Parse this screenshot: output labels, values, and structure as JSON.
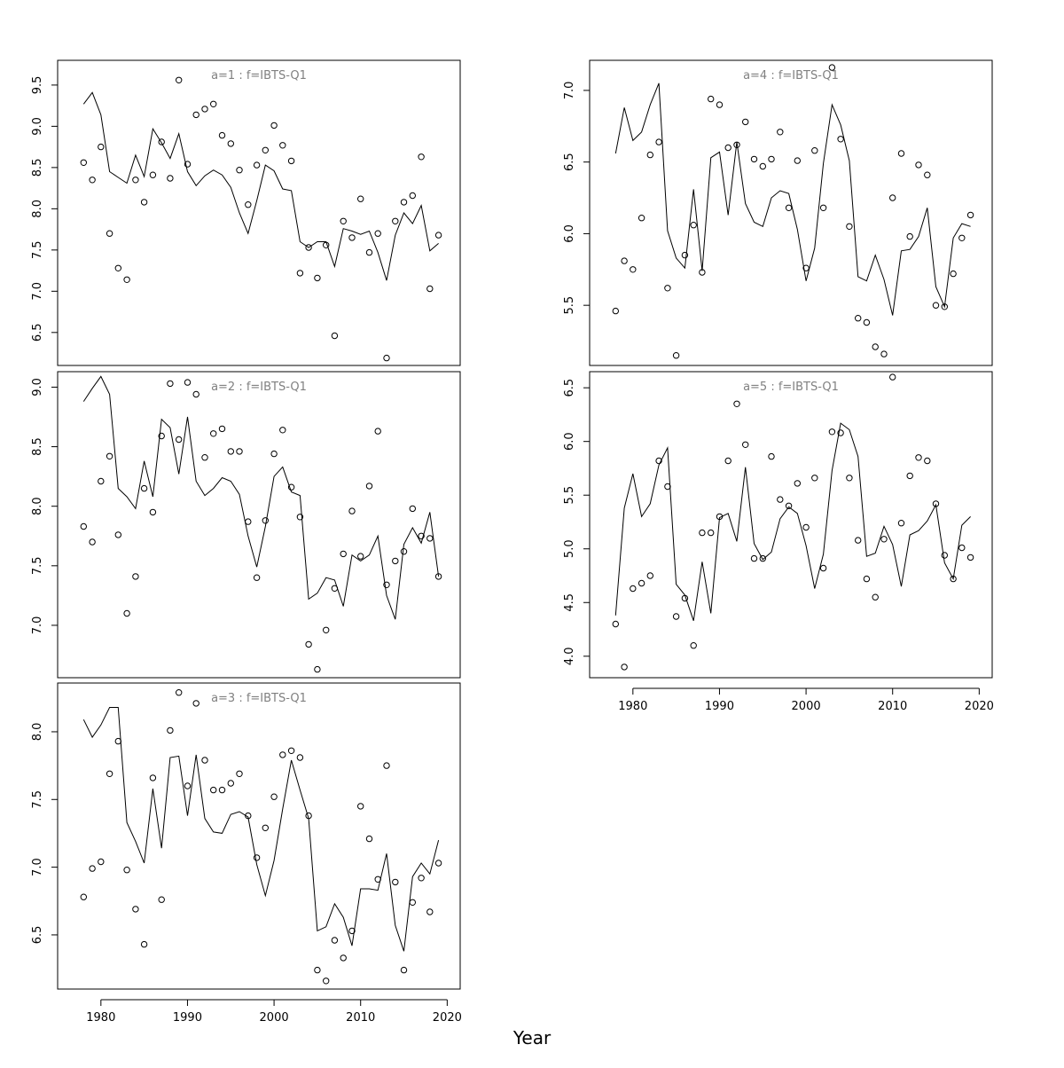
{
  "figure": {
    "xlabel": "Year"
  },
  "chart_data": [
    {
      "type": "line",
      "title": "a=1  :  f=IBTS-Q1",
      "x_ticks": [
        1980,
        1990,
        2000,
        2010,
        2020
      ],
      "show_x_axis": false,
      "xlim": [
        1975,
        2021.5
      ],
      "ylim": [
        6.1,
        9.8
      ],
      "y_ticks": [
        6.5,
        7.0,
        7.5,
        8.0,
        8.5,
        9.0,
        9.5
      ],
      "x": [
        1978,
        1979,
        1980,
        1981,
        1982,
        1983,
        1984,
        1985,
        1986,
        1987,
        1988,
        1989,
        1990,
        1991,
        1992,
        1993,
        1994,
        1995,
        1996,
        1997,
        1998,
        1999,
        2000,
        2001,
        2002,
        2003,
        2004,
        2005,
        2006,
        2007,
        2008,
        2009,
        2010,
        2011,
        2012,
        2013,
        2014,
        2015,
        2016,
        2017,
        2018,
        2019
      ],
      "series": [
        {
          "kind": "line",
          "values": [
            9.27,
            9.41,
            9.14,
            8.45,
            8.38,
            8.31,
            8.65,
            8.39,
            8.97,
            8.8,
            8.61,
            8.91,
            8.45,
            8.28,
            8.4,
            8.47,
            8.41,
            8.26,
            7.95,
            7.7,
            8.1,
            8.53,
            8.46,
            8.24,
            8.22,
            7.6,
            7.53,
            7.6,
            7.6,
            7.3,
            7.76,
            7.73,
            7.69,
            7.73,
            7.47,
            7.13,
            7.68,
            7.95,
            7.82,
            8.04,
            7.49,
            7.58
          ]
        },
        {
          "kind": "points",
          "values": [
            8.56,
            8.35,
            8.75,
            7.7,
            7.28,
            7.14,
            8.35,
            8.08,
            8.41,
            8.81,
            8.37,
            9.56,
            8.54,
            9.14,
            9.21,
            9.27,
            8.89,
            8.79,
            8.47,
            8.05,
            8.53,
            8.71,
            9.01,
            8.77,
            8.58,
            7.22,
            7.53,
            7.16,
            7.56,
            6.46,
            7.85,
            7.65,
            8.12,
            7.47,
            7.7,
            6.19,
            7.85,
            8.08,
            8.16,
            8.63,
            7.03,
            7.68
          ]
        }
      ]
    },
    {
      "type": "line",
      "title": "a=2  :  f=IBTS-Q1",
      "x_ticks": [
        1980,
        1990,
        2000,
        2010,
        2020
      ],
      "show_x_axis": false,
      "xlim": [
        1975,
        2021.5
      ],
      "ylim": [
        6.56,
        9.13
      ],
      "y_ticks": [
        7.0,
        7.5,
        8.0,
        8.5,
        9.0
      ],
      "x": [
        1978,
        1979,
        1980,
        1981,
        1982,
        1983,
        1984,
        1985,
        1986,
        1987,
        1988,
        1989,
        1990,
        1991,
        1992,
        1993,
        1994,
        1995,
        1996,
        1997,
        1998,
        1999,
        2000,
        2001,
        2002,
        2003,
        2004,
        2005,
        2006,
        2007,
        2008,
        2009,
        2010,
        2011,
        2012,
        2013,
        2014,
        2015,
        2016,
        2017,
        2018,
        2019
      ],
      "series": [
        {
          "kind": "line",
          "values": [
            8.88,
            8.99,
            9.09,
            8.94,
            8.15,
            8.08,
            7.98,
            8.38,
            8.08,
            8.73,
            8.66,
            8.27,
            8.75,
            8.21,
            8.09,
            8.15,
            8.24,
            8.21,
            8.1,
            7.75,
            7.49,
            7.83,
            8.25,
            8.33,
            8.12,
            8.09,
            7.22,
            7.27,
            7.4,
            7.38,
            7.16,
            7.59,
            7.54,
            7.59,
            7.75,
            7.25,
            7.05,
            7.68,
            7.82,
            7.69,
            7.95,
            7.41
          ]
        },
        {
          "kind": "points",
          "values": [
            7.83,
            7.7,
            8.21,
            8.42,
            7.76,
            7.1,
            7.41,
            8.15,
            7.95,
            8.59,
            9.03,
            8.56,
            9.04,
            8.94,
            8.41,
            8.61,
            8.65,
            8.46,
            8.46,
            7.87,
            7.4,
            7.88,
            8.44,
            8.64,
            8.16,
            7.91,
            6.84,
            6.63,
            6.96,
            7.31,
            7.6,
            7.96,
            7.58,
            8.17,
            8.63,
            7.34,
            7.54,
            7.62,
            7.98,
            7.75,
            7.73,
            7.41
          ]
        }
      ]
    },
    {
      "type": "line",
      "title": "a=3  :  f=IBTS-Q1",
      "x_ticks": [
        1980,
        1990,
        2000,
        2010,
        2020
      ],
      "show_x_axis": true,
      "xlim": [
        1975,
        2021.5
      ],
      "ylim": [
        6.1,
        8.36
      ],
      "y_ticks": [
        6.5,
        7.0,
        7.5,
        8.0
      ],
      "x": [
        1978,
        1979,
        1980,
        1981,
        1982,
        1983,
        1984,
        1985,
        1986,
        1987,
        1988,
        1989,
        1990,
        1991,
        1992,
        1993,
        1994,
        1995,
        1996,
        1997,
        1998,
        1999,
        2000,
        2001,
        2002,
        2003,
        2004,
        2005,
        2006,
        2007,
        2008,
        2009,
        2010,
        2011,
        2012,
        2013,
        2014,
        2015,
        2016,
        2017,
        2018,
        2019
      ],
      "series": [
        {
          "kind": "line",
          "values": [
            8.09,
            7.96,
            8.05,
            8.18,
            8.18,
            7.33,
            7.19,
            7.03,
            7.58,
            7.14,
            7.81,
            7.82,
            7.38,
            7.83,
            7.36,
            7.26,
            7.25,
            7.39,
            7.41,
            7.37,
            7.02,
            6.79,
            7.05,
            7.43,
            7.79,
            7.57,
            7.36,
            6.53,
            6.56,
            6.73,
            6.63,
            6.42,
            6.84,
            6.84,
            6.83,
            7.1,
            6.57,
            6.38,
            6.93,
            7.03,
            6.95,
            7.2
          ]
        },
        {
          "kind": "points",
          "values": [
            6.78,
            6.99,
            7.04,
            7.69,
            7.93,
            6.98,
            6.69,
            6.43,
            7.66,
            6.76,
            8.01,
            8.29,
            7.6,
            8.21,
            7.79,
            7.57,
            7.57,
            7.62,
            7.69,
            7.38,
            7.07,
            7.29,
            7.52,
            7.83,
            7.86,
            7.81,
            7.38,
            6.24,
            6.16,
            6.46,
            6.33,
            6.53,
            7.45,
            7.21,
            6.91,
            7.75,
            6.89,
            6.24,
            6.74,
            6.92,
            6.67,
            7.03
          ]
        }
      ]
    },
    {
      "type": "line",
      "title": "a=4  :  f=IBTS-Q1",
      "x_ticks": [
        1980,
        1990,
        2000,
        2010,
        2020
      ],
      "show_x_axis": false,
      "xlim": [
        1975,
        2021.5
      ],
      "ylim": [
        5.08,
        7.21
      ],
      "y_ticks": [
        5.5,
        6.0,
        6.5,
        7.0
      ],
      "x": [
        1978,
        1979,
        1980,
        1981,
        1982,
        1983,
        1984,
        1985,
        1986,
        1987,
        1988,
        1989,
        1990,
        1991,
        1992,
        1993,
        1994,
        1995,
        1996,
        1997,
        1998,
        1999,
        2000,
        2001,
        2002,
        2003,
        2004,
        2005,
        2006,
        2007,
        2008,
        2009,
        2010,
        2011,
        2012,
        2013,
        2014,
        2015,
        2016,
        2017,
        2018,
        2019
      ],
      "series": [
        {
          "kind": "line",
          "values": [
            6.56,
            6.88,
            6.65,
            6.71,
            6.9,
            7.05,
            6.02,
            5.83,
            5.76,
            6.31,
            5.74,
            6.53,
            6.57,
            6.13,
            6.64,
            6.21,
            6.08,
            6.05,
            6.25,
            6.3,
            6.28,
            6.03,
            5.67,
            5.9,
            6.49,
            6.9,
            6.76,
            6.51,
            5.7,
            5.67,
            5.85,
            5.68,
            5.43,
            5.88,
            5.89,
            5.98,
            6.18,
            5.63,
            5.49,
            5.97,
            6.07,
            6.05
          ]
        },
        {
          "kind": "points",
          "values": [
            5.46,
            5.81,
            5.75,
            6.11,
            6.55,
            6.64,
            5.62,
            5.15,
            5.85,
            6.06,
            5.73,
            6.94,
            6.9,
            6.6,
            6.62,
            6.78,
            6.52,
            6.47,
            6.52,
            6.71,
            6.18,
            6.51,
            5.76,
            6.58,
            6.18,
            7.16,
            6.66,
            6.05,
            5.41,
            5.38,
            5.21,
            5.16,
            6.25,
            6.56,
            5.98,
            6.48,
            6.41,
            5.5,
            5.49,
            5.72,
            5.97,
            6.13
          ]
        }
      ]
    },
    {
      "type": "line",
      "title": "a=5  :  f=IBTS-Q1",
      "x_ticks": [
        1980,
        1990,
        2000,
        2010,
        2020
      ],
      "show_x_axis": true,
      "xlim": [
        1975,
        2021.5
      ],
      "ylim": [
        3.8,
        6.65
      ],
      "y_ticks": [
        4.0,
        4.5,
        5.0,
        5.5,
        6.0,
        6.5
      ],
      "x": [
        1978,
        1979,
        1980,
        1981,
        1982,
        1983,
        1984,
        1985,
        1986,
        1987,
        1988,
        1989,
        1990,
        1991,
        1992,
        1993,
        1994,
        1995,
        1996,
        1997,
        1998,
        1999,
        2000,
        2001,
        2002,
        2003,
        2004,
        2005,
        2006,
        2007,
        2008,
        2009,
        2010,
        2011,
        2012,
        2013,
        2014,
        2015,
        2016,
        2017,
        2018,
        2019
      ],
      "series": [
        {
          "kind": "line",
          "values": [
            4.38,
            5.38,
            5.7,
            5.3,
            5.42,
            5.78,
            5.94,
            4.67,
            4.57,
            4.33,
            4.88,
            4.4,
            5.29,
            5.33,
            5.07,
            5.76,
            5.05,
            4.9,
            4.97,
            5.28,
            5.39,
            5.33,
            5.03,
            4.63,
            4.95,
            5.73,
            6.17,
            6.11,
            5.86,
            4.93,
            4.96,
            5.21,
            5.04,
            4.65,
            5.13,
            5.17,
            5.26,
            5.41,
            4.87,
            4.72,
            5.22,
            5.3
          ]
        },
        {
          "kind": "points",
          "values": [
            4.3,
            3.9,
            4.63,
            4.68,
            4.75,
            5.82,
            5.58,
            4.37,
            4.54,
            4.1,
            5.15,
            5.15,
            5.3,
            5.82,
            6.35,
            5.97,
            4.91,
            4.91,
            5.86,
            5.46,
            5.4,
            5.61,
            5.2,
            5.66,
            4.82,
            6.09,
            6.08,
            5.66,
            5.08,
            4.72,
            4.55,
            5.09,
            6.6,
            5.24,
            5.68,
            5.85,
            5.82,
            5.42,
            4.94,
            4.72,
            5.01,
            4.92
          ]
        }
      ]
    }
  ]
}
